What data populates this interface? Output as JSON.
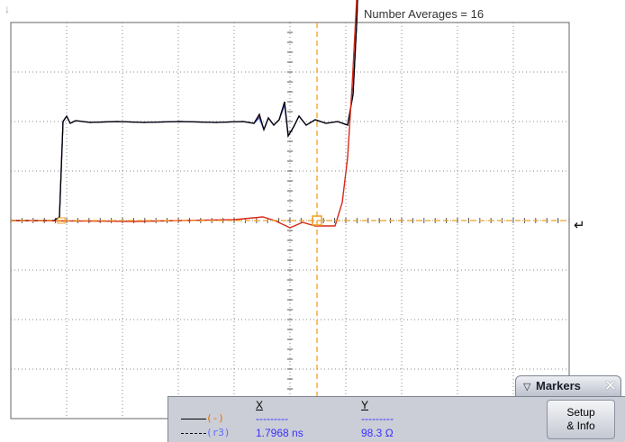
{
  "header": {
    "acquisition_label": "Number Averages = 16"
  },
  "icons": {
    "trigger_marker": "trigger-arrow-icon",
    "reference_marker": "ground-reference-icon"
  },
  "colors": {
    "grid": "#8a8a8a",
    "trace_black": "#000000",
    "trace_blue": "#3b5bd6",
    "trace_magenta": "#c0308a",
    "trace_red": "#d62a1a",
    "marker": "#f0a020"
  },
  "markers": {
    "title": "Markers",
    "close_label": "✕",
    "columns": {
      "x": "X",
      "y": "Y"
    },
    "rows": [
      {
        "source": "(-)",
        "x": "---------",
        "y": "---------"
      },
      {
        "source": "(r3)",
        "x": "1.7968 ns",
        "y": "98.3 Ω"
      }
    ],
    "setup_button": {
      "line1": "Setup",
      "line2": "& Info"
    }
  }
}
